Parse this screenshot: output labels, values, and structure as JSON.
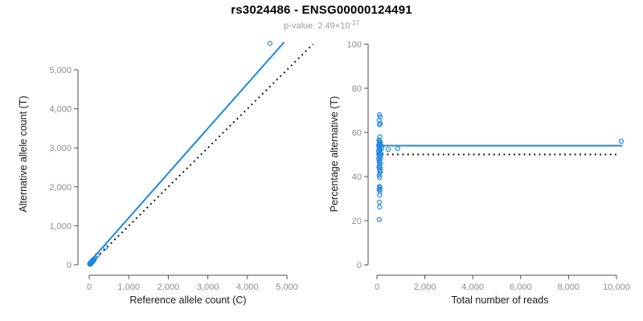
{
  "header": {
    "title": "rs3024486 - ENSG00000124491",
    "pvalue_prefix": "p-value: 2.49×10",
    "pvalue_exponent": "-17"
  },
  "colors": {
    "accent_blue": "#1E88E5",
    "identity_line": "#000000",
    "axis_line": "#4D4D4D",
    "tick_label": "#8C8C8C",
    "axis_title": "#1A1A1A"
  },
  "chart_data": [
    {
      "type": "scatter",
      "name": "allele-counts",
      "xlabel": "Reference allele count (C)",
      "ylabel": "Alternative allele count (T)",
      "xlim": [
        0,
        5700
      ],
      "ylim": [
        0,
        5750
      ],
      "grid": false,
      "x_ticks": [
        {
          "v": 0,
          "label": "0"
        },
        {
          "v": 1000,
          "label": "1,000"
        },
        {
          "v": 2000,
          "label": "2,000"
        },
        {
          "v": 3000,
          "label": "3,000"
        },
        {
          "v": 4000,
          "label": "4,000"
        },
        {
          "v": 5000,
          "label": "5,000"
        }
      ],
      "y_ticks": [
        {
          "v": 0,
          "label": "0"
        },
        {
          "v": 1000,
          "label": "1,000"
        },
        {
          "v": 2000,
          "label": "2,000"
        },
        {
          "v": 3000,
          "label": "3,000"
        },
        {
          "v": 4000,
          "label": "4,000"
        },
        {
          "v": 5000,
          "label": "5,000"
        }
      ],
      "points": [
        [
          20,
          25,
          1
        ],
        [
          25,
          28,
          1
        ],
        [
          30,
          34,
          1
        ],
        [
          35,
          38,
          1
        ],
        [
          40,
          46,
          1
        ],
        [
          45,
          50,
          1
        ],
        [
          50,
          57,
          1
        ],
        [
          55,
          60,
          1
        ],
        [
          60,
          69,
          1
        ],
        [
          65,
          72,
          1
        ],
        [
          70,
          80,
          1
        ],
        [
          75,
          85,
          1
        ],
        [
          80,
          92,
          1
        ],
        [
          85,
          95,
          1
        ],
        [
          90,
          104,
          1
        ],
        [
          100,
          115,
          1
        ],
        [
          110,
          126,
          1
        ],
        [
          120,
          140,
          0
        ],
        [
          142,
          165,
          0
        ],
        [
          203,
          247,
          0
        ],
        [
          410,
          450,
          0
        ],
        [
          4570,
          5680,
          0
        ]
      ],
      "lines": [
        {
          "name": "fit-line",
          "style": "solid",
          "color_key": "accent_blue",
          "x1": 0,
          "y1": 60,
          "x2": 4930,
          "y2": 5710
        },
        {
          "name": "identity-line",
          "style": "dotted",
          "color_key": "identity_line",
          "x1": 0,
          "y1": 0,
          "x2": 5660,
          "y2": 5660
        }
      ]
    },
    {
      "type": "scatter",
      "name": "percentage-vs-coverage",
      "xlabel": "Total number of reads",
      "ylabel": "Percentage alternative (T)",
      "xlim": [
        0,
        10300
      ],
      "ylim": [
        0,
        100
      ],
      "grid": false,
      "x_ticks": [
        {
          "v": 0,
          "label": "0"
        },
        {
          "v": 2000,
          "label": "2,000"
        },
        {
          "v": 4000,
          "label": "4,000"
        },
        {
          "v": 6000,
          "label": "6,000"
        },
        {
          "v": 8000,
          "label": "8,000"
        },
        {
          "v": 10000,
          "label": "10,000"
        }
      ],
      "y_ticks": [
        {
          "v": 0,
          "label": "0"
        },
        {
          "v": 20,
          "label": "20"
        },
        {
          "v": 40,
          "label": "40"
        },
        {
          "v": 60,
          "label": "60"
        },
        {
          "v": 80,
          "label": "80"
        },
        {
          "v": 100,
          "label": "100"
        }
      ],
      "points": [
        [
          100,
          68,
          0
        ],
        [
          130,
          67,
          0
        ],
        [
          90,
          65.5,
          0
        ],
        [
          140,
          64,
          0
        ],
        [
          105,
          63.5,
          0
        ],
        [
          120,
          58,
          0
        ],
        [
          80,
          56.5,
          0
        ],
        [
          110,
          56,
          0
        ],
        [
          150,
          55.5,
          0
        ],
        [
          90,
          55,
          0
        ],
        [
          130,
          54.5,
          0
        ],
        [
          70,
          54,
          0
        ],
        [
          170,
          54,
          0
        ],
        [
          110,
          53.5,
          0
        ],
        [
          200,
          53,
          0
        ],
        [
          470,
          52.3,
          0
        ],
        [
          870,
          52.7,
          0
        ],
        [
          95,
          52.5,
          0
        ],
        [
          140,
          52,
          0
        ],
        [
          60,
          51.5,
          0
        ],
        [
          115,
          51,
          0
        ],
        [
          160,
          50.5,
          0
        ],
        [
          80,
          50,
          0
        ],
        [
          130,
          49.5,
          0
        ],
        [
          100,
          49,
          0
        ],
        [
          150,
          48.5,
          0
        ],
        [
          70,
          48,
          0
        ],
        [
          120,
          47.3,
          0
        ],
        [
          90,
          46.5,
          0
        ],
        [
          140,
          46,
          0
        ],
        [
          110,
          45,
          0
        ],
        [
          80,
          44.3,
          0
        ],
        [
          130,
          44,
          0
        ],
        [
          100,
          43,
          0
        ],
        [
          150,
          42.5,
          0
        ],
        [
          120,
          41.5,
          0
        ],
        [
          90,
          40.5,
          0
        ],
        [
          110,
          39.5,
          0
        ],
        [
          100,
          35.5,
          0
        ],
        [
          125,
          35,
          0
        ],
        [
          110,
          34.3,
          0
        ],
        [
          90,
          34,
          0
        ],
        [
          120,
          33.4,
          0
        ],
        [
          110,
          31.6,
          0
        ],
        [
          100,
          28.4,
          0
        ],
        [
          112,
          26.2,
          0
        ],
        [
          95,
          20.5,
          0
        ],
        [
          10200,
          56,
          0
        ]
      ],
      "lines": [
        {
          "name": "fit-line",
          "style": "solid",
          "color_key": "accent_blue",
          "x1": 0,
          "y1": 54,
          "x2": 10250,
          "y2": 54
        },
        {
          "name": "null-line",
          "style": "dotted",
          "color_key": "identity_line",
          "x1": 0,
          "y1": 50,
          "x2": 10000,
          "y2": 50
        }
      ]
    }
  ]
}
